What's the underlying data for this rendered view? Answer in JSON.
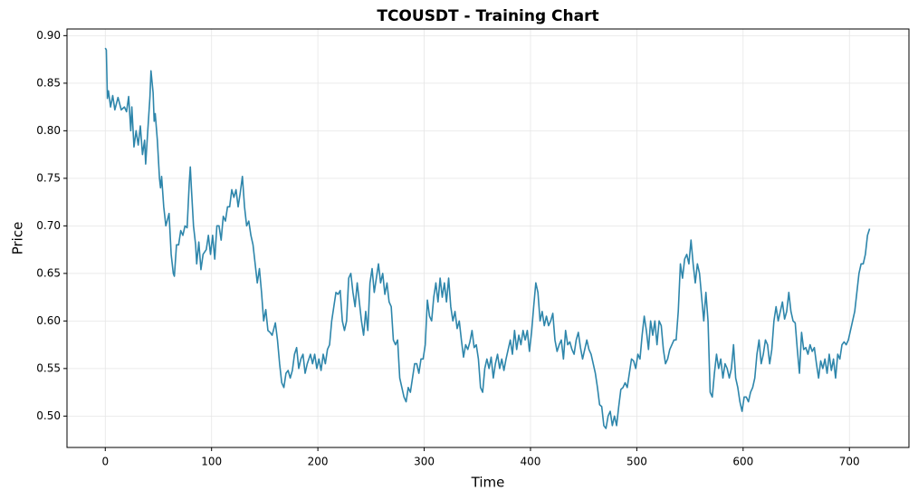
{
  "chart_data": {
    "type": "line",
    "title": "TCOUSDT - Training Chart",
    "x_label": "Time",
    "y_label": "Price",
    "grid": true,
    "xlim": [
      -36,
      756
    ],
    "ylim": [
      0.467,
      0.907
    ],
    "xticks": [
      0,
      100,
      200,
      300,
      400,
      500,
      600,
      700
    ],
    "yticks": [
      {
        "value": 0.5,
        "label": "0.50"
      },
      0.55,
      {
        "value": 0.6,
        "label": "0.60"
      },
      0.65,
      {
        "value": 0.7,
        "label": "0.70"
      },
      0.75,
      {
        "value": 0.8,
        "label": "0.80"
      },
      0.85,
      {
        "value": 0.9,
        "label": "0.90"
      }
    ],
    "x": [
      0,
      1,
      2,
      3,
      5,
      7,
      9,
      12,
      15,
      18,
      20,
      22,
      24,
      25,
      27,
      29,
      31,
      33,
      35,
      37,
      38,
      40,
      42,
      43,
      45,
      46,
      47,
      49,
      51,
      52,
      53,
      55,
      57,
      60,
      62,
      64,
      65,
      67,
      69,
      71,
      73,
      75,
      77,
      79,
      80,
      81,
      83,
      85,
      86,
      88,
      90,
      92,
      95,
      97,
      99,
      101,
      103,
      105,
      107,
      109,
      111,
      113,
      115,
      117,
      119,
      121,
      123,
      125,
      127,
      129,
      131,
      133,
      135,
      137,
      139,
      141,
      143,
      145,
      147,
      149,
      151,
      153,
      155,
      157,
      160,
      162,
      164,
      166,
      168,
      170,
      172,
      174,
      176,
      178,
      180,
      182,
      184,
      186,
      188,
      190,
      193,
      195,
      197,
      199,
      201,
      203,
      205,
      207,
      209,
      211,
      213,
      215,
      217,
      219,
      221,
      223,
      225,
      227,
      229,
      231,
      233,
      235,
      237,
      239,
      241,
      243,
      245,
      247,
      249,
      251,
      253,
      255,
      257,
      259,
      261,
      263,
      265,
      267,
      269,
      271,
      273,
      275,
      277,
      279,
      281,
      283,
      285,
      287,
      289,
      291,
      293,
      295,
      297,
      299,
      301,
      303,
      305,
      307,
      309,
      311,
      313,
      315,
      317,
      319,
      321,
      323,
      325,
      327,
      329,
      331,
      333,
      335,
      337,
      339,
      341,
      343,
      345,
      347,
      349,
      351,
      353,
      355,
      357,
      359,
      361,
      363,
      365,
      367,
      369,
      371,
      373,
      375,
      377,
      379,
      381,
      383,
      385,
      387,
      389,
      391,
      393,
      395,
      397,
      399,
      401,
      403,
      405,
      407,
      409,
      411,
      413,
      415,
      417,
      419,
      421,
      423,
      425,
      427,
      429,
      431,
      433,
      435,
      437,
      439,
      441,
      443,
      445,
      447,
      449,
      451,
      453,
      455,
      457,
      459,
      461,
      463,
      465,
      467,
      469,
      471,
      473,
      475,
      477,
      479,
      481,
      483,
      485,
      487,
      489,
      491,
      493,
      495,
      497,
      499,
      501,
      503,
      505,
      507,
      509,
      511,
      513,
      515,
      517,
      519,
      521,
      523,
      525,
      527,
      529,
      531,
      533,
      535,
      537,
      539,
      541,
      543,
      545,
      547,
      549,
      551,
      553,
      555,
      557,
      559,
      561,
      563,
      565,
      567,
      569,
      571,
      573,
      575,
      577,
      579,
      581,
      583,
      585,
      587,
      589,
      591,
      593,
      595,
      597,
      599,
      601,
      603,
      605,
      607,
      609,
      611,
      613,
      615,
      617,
      619,
      621,
      623,
      625,
      627,
      629,
      631,
      633,
      635,
      637,
      639,
      641,
      643,
      645,
      647,
      649,
      651,
      653,
      655,
      657,
      659,
      661,
      663,
      665,
      667,
      669,
      671,
      673,
      675,
      677,
      679,
      681,
      683,
      685,
      687,
      689,
      691,
      693,
      695,
      697,
      699,
      701,
      703,
      705,
      707,
      709,
      711,
      713,
      715,
      717,
      719
    ],
    "series": [
      {
        "color": "#2e86ab",
        "values": [
          0.887,
          0.885,
          0.834,
          0.842,
          0.825,
          0.837,
          0.822,
          0.835,
          0.822,
          0.825,
          0.82,
          0.836,
          0.8,
          0.825,
          0.783,
          0.8,
          0.785,
          0.805,
          0.775,
          0.79,
          0.765,
          0.8,
          0.835,
          0.863,
          0.84,
          0.81,
          0.818,
          0.79,
          0.75,
          0.74,
          0.752,
          0.72,
          0.7,
          0.713,
          0.67,
          0.65,
          0.647,
          0.68,
          0.68,
          0.695,
          0.69,
          0.7,
          0.698,
          0.745,
          0.762,
          0.74,
          0.7,
          0.68,
          0.66,
          0.683,
          0.654,
          0.67,
          0.675,
          0.69,
          0.67,
          0.69,
          0.665,
          0.7,
          0.7,
          0.685,
          0.71,
          0.705,
          0.72,
          0.72,
          0.738,
          0.73,
          0.738,
          0.72,
          0.735,
          0.752,
          0.72,
          0.7,
          0.705,
          0.69,
          0.68,
          0.66,
          0.64,
          0.655,
          0.63,
          0.6,
          0.612,
          0.59,
          0.588,
          0.585,
          0.598,
          0.58,
          0.555,
          0.535,
          0.53,
          0.545,
          0.548,
          0.54,
          0.548,
          0.565,
          0.572,
          0.55,
          0.56,
          0.565,
          0.545,
          0.555,
          0.565,
          0.555,
          0.565,
          0.55,
          0.56,
          0.548,
          0.565,
          0.555,
          0.57,
          0.575,
          0.6,
          0.615,
          0.63,
          0.628,
          0.632,
          0.6,
          0.59,
          0.6,
          0.645,
          0.65,
          0.63,
          0.615,
          0.64,
          0.62,
          0.6,
          0.585,
          0.61,
          0.59,
          0.64,
          0.655,
          0.63,
          0.645,
          0.66,
          0.64,
          0.65,
          0.628,
          0.64,
          0.62,
          0.615,
          0.58,
          0.575,
          0.58,
          0.54,
          0.53,
          0.52,
          0.515,
          0.53,
          0.525,
          0.54,
          0.555,
          0.555,
          0.545,
          0.56,
          0.56,
          0.575,
          0.622,
          0.605,
          0.6,
          0.625,
          0.64,
          0.62,
          0.645,
          0.625,
          0.64,
          0.62,
          0.645,
          0.615,
          0.6,
          0.61,
          0.592,
          0.6,
          0.58,
          0.562,
          0.575,
          0.57,
          0.578,
          0.59,
          0.572,
          0.575,
          0.56,
          0.53,
          0.525,
          0.55,
          0.56,
          0.55,
          0.562,
          0.54,
          0.555,
          0.565,
          0.55,
          0.56,
          0.548,
          0.56,
          0.57,
          0.58,
          0.565,
          0.59,
          0.57,
          0.585,
          0.575,
          0.59,
          0.58,
          0.59,
          0.568,
          0.588,
          0.615,
          0.64,
          0.63,
          0.6,
          0.61,
          0.595,
          0.605,
          0.595,
          0.6,
          0.608,
          0.58,
          0.568,
          0.575,
          0.58,
          0.56,
          0.59,
          0.575,
          0.578,
          0.57,
          0.565,
          0.58,
          0.588,
          0.572,
          0.56,
          0.57,
          0.58,
          0.57,
          0.565,
          0.555,
          0.545,
          0.53,
          0.512,
          0.51,
          0.49,
          0.487,
          0.5,
          0.505,
          0.49,
          0.5,
          0.49,
          0.51,
          0.528,
          0.53,
          0.535,
          0.53,
          0.545,
          0.56,
          0.558,
          0.55,
          0.565,
          0.56,
          0.585,
          0.605,
          0.59,
          0.57,
          0.6,
          0.585,
          0.6,
          0.575,
          0.6,
          0.595,
          0.57,
          0.555,
          0.56,
          0.57,
          0.575,
          0.58,
          0.58,
          0.61,
          0.66,
          0.645,
          0.665,
          0.67,
          0.66,
          0.685,
          0.66,
          0.64,
          0.66,
          0.65,
          0.625,
          0.6,
          0.63,
          0.6,
          0.525,
          0.52,
          0.545,
          0.565,
          0.55,
          0.56,
          0.54,
          0.555,
          0.55,
          0.54,
          0.55,
          0.575,
          0.54,
          0.53,
          0.515,
          0.505,
          0.52,
          0.52,
          0.515,
          0.525,
          0.53,
          0.54,
          0.565,
          0.58,
          0.555,
          0.565,
          0.58,
          0.575,
          0.555,
          0.57,
          0.6,
          0.615,
          0.6,
          0.61,
          0.62,
          0.602,
          0.61,
          0.63,
          0.61,
          0.6,
          0.598,
          0.57,
          0.545,
          0.588,
          0.57,
          0.572,
          0.565,
          0.575,
          0.568,
          0.572,
          0.555,
          0.54,
          0.558,
          0.55,
          0.56,
          0.545,
          0.565,
          0.548,
          0.56,
          0.54,
          0.565,
          0.56,
          0.575,
          0.578,
          0.575,
          0.58,
          0.59,
          0.6,
          0.61,
          0.63,
          0.65,
          0.66,
          0.66,
          0.67,
          0.69,
          0.697
        ]
      }
    ]
  }
}
